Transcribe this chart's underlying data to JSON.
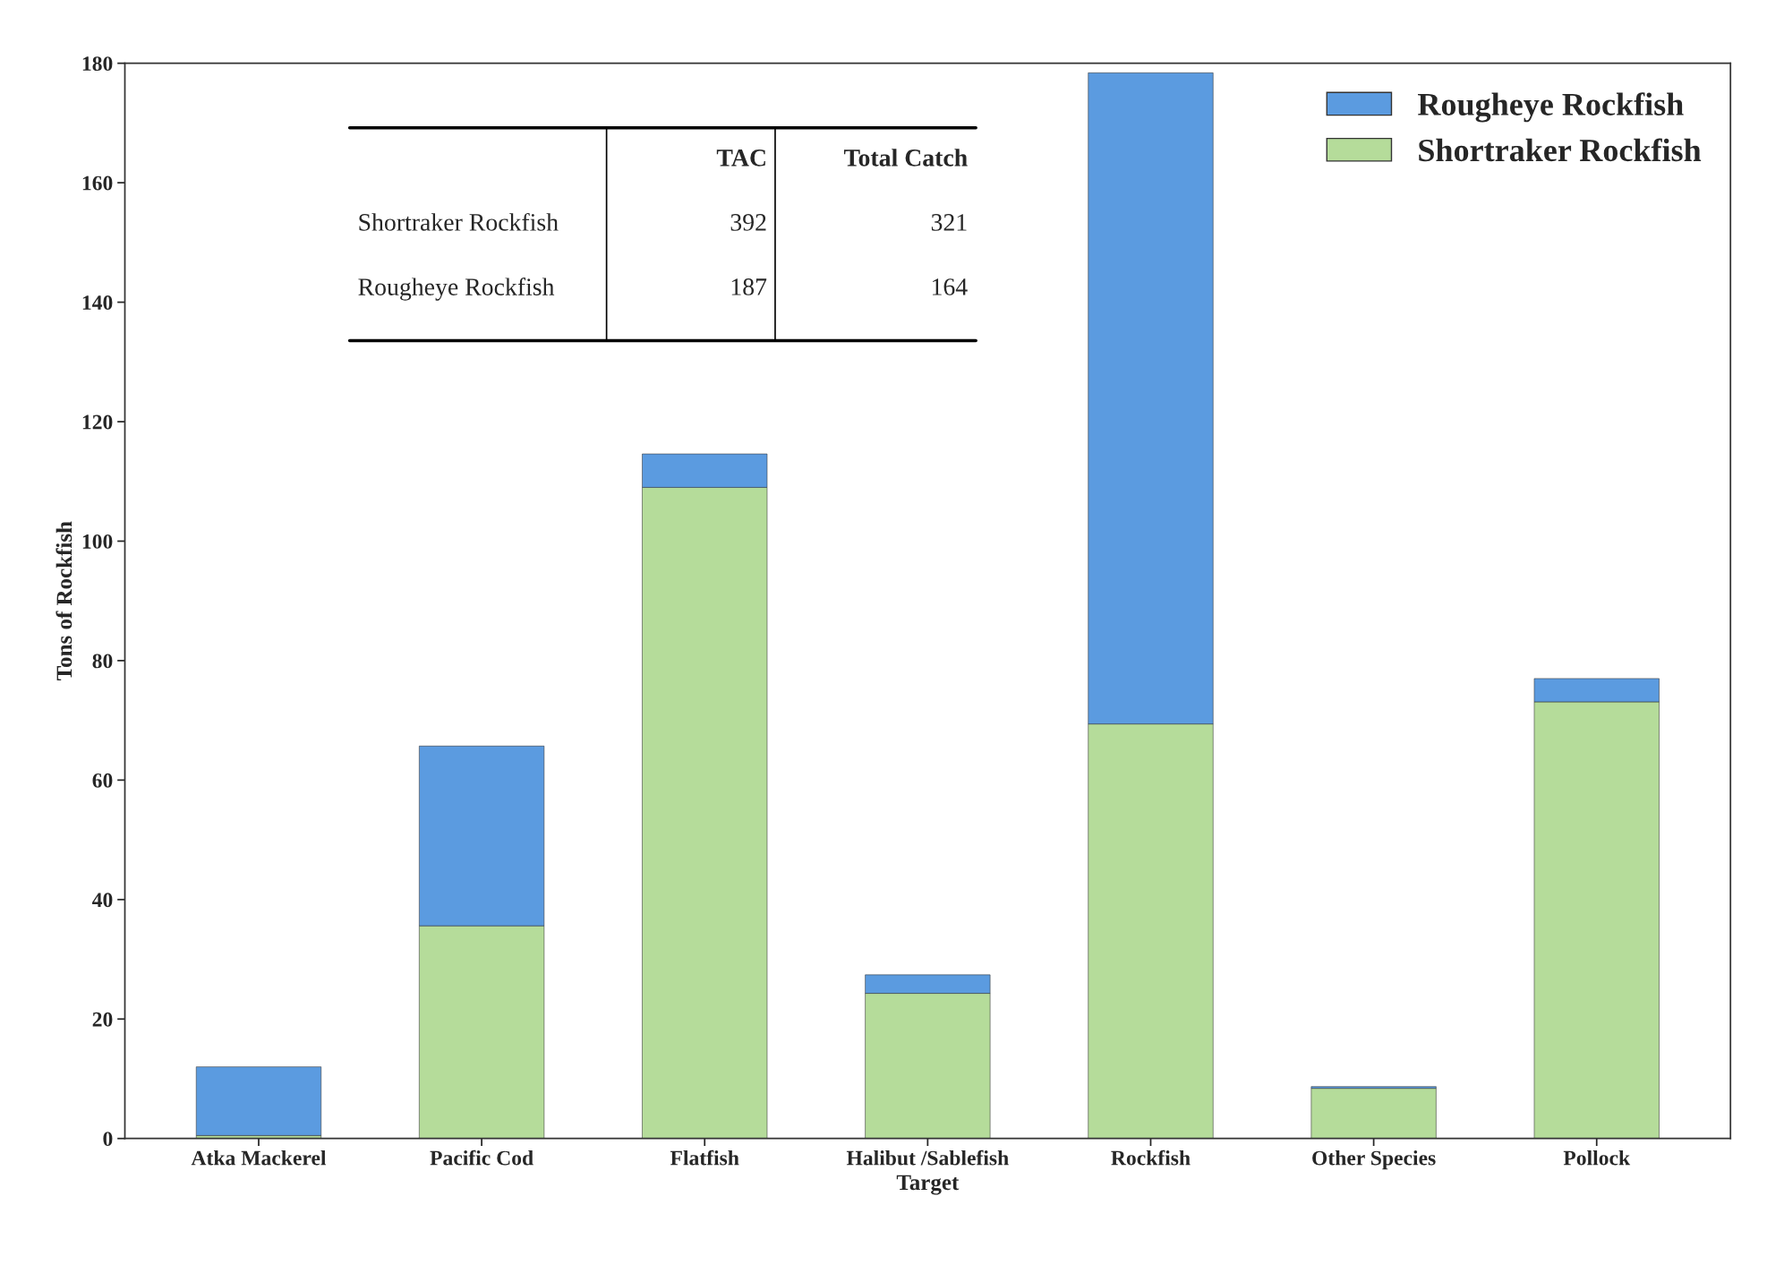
{
  "chart_data": {
    "type": "bar",
    "stacked": true,
    "xlabel": "Target",
    "ylabel": "Tons of Rockfish",
    "categories": [
      "Atka Mackerel",
      "Pacific Cod",
      "Flatfish",
      "Halibut /Sablefish",
      "Rockfish",
      "Other Species",
      "Pollock"
    ],
    "series": [
      {
        "name": "Shortraker Rockfish",
        "color": "#b5dc9a",
        "values": [
          0.5,
          35.6,
          109,
          24.3,
          69.4,
          8.4,
          73.1
        ]
      },
      {
        "name": "Rougheye Rockfish",
        "color": "#5b9be0",
        "values": [
          11.5,
          30.1,
          5.6,
          3.1,
          109,
          0.3,
          3.9
        ]
      }
    ],
    "ylim": [
      0,
      180
    ],
    "yticks": [
      0,
      20,
      40,
      60,
      80,
      100,
      120,
      140,
      160,
      180
    ],
    "grid": false,
    "legend": "top right",
    "annotations": [
      "TAC",
      "Total Catch",
      "Shortraker Rockfish",
      "392",
      "321",
      "Rougheye Rockfish",
      "187",
      "164"
    ]
  }
}
